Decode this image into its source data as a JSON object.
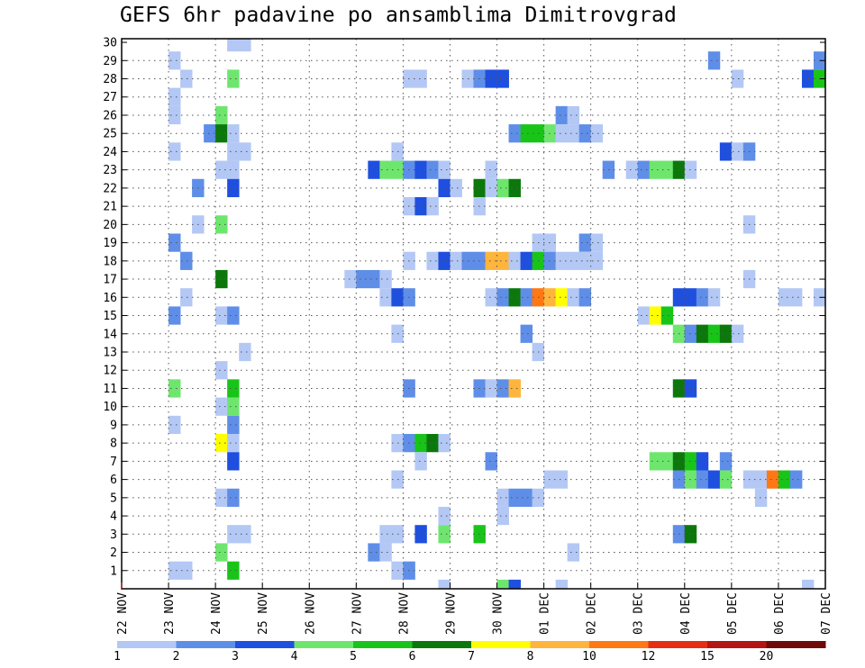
{
  "title": "GEFS 6hr padavine po ansamblima Dimitrovgrad",
  "chart_data": {
    "type": "heatmap",
    "title": "GEFS 6hr padavine po ansamblima Dimitrovgrad",
    "x_tick_labels": [
      "22 NOV",
      "23 NOV",
      "24 NOV",
      "25 NOV",
      "26 NOV",
      "27 NOV",
      "28 NOV",
      "29 NOV",
      "30 NOV",
      "01 DEC",
      "02 DEC",
      "03 DEC",
      "04 DEC",
      "05 DEC",
      "06 DEC",
      "07 DEC"
    ],
    "y_tick_labels": [
      "1",
      "2",
      "3",
      "4",
      "5",
      "6",
      "7",
      "8",
      "9",
      "10",
      "11",
      "12",
      "13",
      "14",
      "15",
      "16",
      "17",
      "18",
      "19",
      "20",
      "21",
      "22",
      "23",
      "24",
      "25",
      "26",
      "27",
      "28",
      "29",
      "30"
    ],
    "x_step_hours": 6,
    "ylim": [
      0,
      30
    ],
    "grid": true,
    "colorbar": {
      "labels": [
        "1",
        "2",
        "3",
        "4",
        "5",
        "6",
        "7",
        "8",
        "10",
        "12",
        "15",
        "20"
      ],
      "colors": [
        "#b4c8f5",
        "#5f8ee8",
        "#1f4fdf",
        "#6ee66e",
        "#19c419",
        "#0c780c",
        "#ffff00",
        "#ffb43c",
        "#ff7814",
        "#e62d14",
        "#b41414",
        "#6e0a0a"
      ]
    },
    "cell_colors": {
      "vlight": "#b4c8f5",
      "light": "#5f8ee8",
      "blue": "#1f4fdf",
      "lgreen": "#6ee66e",
      "green": "#19c419",
      "dgreen": "#0c780c",
      "yellow": "#ffff00",
      "orange": "#ffb43c",
      "dorange": "#ff7814"
    },
    "cells": [
      [
        "vlight",
        9,
        30
      ],
      [
        "vlight",
        10,
        30
      ],
      [
        "vlight",
        4,
        29
      ],
      [
        "light",
        50,
        29
      ],
      [
        "light",
        59,
        29
      ],
      [
        "vlight",
        5,
        28
      ],
      [
        "lgreen",
        9,
        28
      ],
      [
        "vlight",
        24,
        28
      ],
      [
        "vlight",
        25,
        28
      ],
      [
        "vlight",
        29,
        28
      ],
      [
        "light",
        30,
        28
      ],
      [
        "blue",
        31,
        28
      ],
      [
        "blue",
        32,
        28
      ],
      [
        "vlight",
        52,
        28
      ],
      [
        "blue",
        58,
        28
      ],
      [
        "green",
        59,
        28
      ],
      [
        "vlight",
        4,
        27
      ],
      [
        "vlight",
        4,
        26
      ],
      [
        "lgreen",
        8,
        26
      ],
      [
        "light",
        37,
        26
      ],
      [
        "vlight",
        38,
        26
      ],
      [
        "light",
        7,
        25
      ],
      [
        "dgreen",
        8,
        25
      ],
      [
        "vlight",
        9,
        25
      ],
      [
        "light",
        33,
        25
      ],
      [
        "green",
        34,
        25
      ],
      [
        "green",
        35,
        25
      ],
      [
        "lgreen",
        36,
        25
      ],
      [
        "vlight",
        37,
        25
      ],
      [
        "vlight",
        38,
        25
      ],
      [
        "light",
        39,
        25
      ],
      [
        "vlight",
        40,
        25
      ],
      [
        "vlight",
        4,
        24
      ],
      [
        "vlight",
        9,
        24
      ],
      [
        "vlight",
        10,
        24
      ],
      [
        "vlight",
        23,
        24
      ],
      [
        "blue",
        51,
        24
      ],
      [
        "vlight",
        52,
        24
      ],
      [
        "light",
        53,
        24
      ],
      [
        "vlight",
        8,
        23
      ],
      [
        "vlight",
        9,
        23
      ],
      [
        "blue",
        21,
        23
      ],
      [
        "lgreen",
        22,
        23
      ],
      [
        "lgreen",
        23,
        23
      ],
      [
        "light",
        24,
        23
      ],
      [
        "blue",
        25,
        23
      ],
      [
        "light",
        26,
        23
      ],
      [
        "vlight",
        27,
        23
      ],
      [
        "vlight",
        31,
        23
      ],
      [
        "light",
        41,
        23
      ],
      [
        "vlight",
        43,
        23
      ],
      [
        "light",
        44,
        23
      ],
      [
        "lgreen",
        45,
        23
      ],
      [
        "lgreen",
        46,
        23
      ],
      [
        "dgreen",
        47,
        23
      ],
      [
        "vlight",
        48,
        23
      ],
      [
        "light",
        6,
        22
      ],
      [
        "blue",
        9,
        22
      ],
      [
        "blue",
        27,
        22
      ],
      [
        "vlight",
        28,
        22
      ],
      [
        "dgreen",
        30,
        22
      ],
      [
        "vlight",
        31,
        22
      ],
      [
        "lgreen",
        32,
        22
      ],
      [
        "dgreen",
        33,
        22
      ],
      [
        "vlight",
        24,
        21
      ],
      [
        "blue",
        25,
        21
      ],
      [
        "vlight",
        26,
        21
      ],
      [
        "vlight",
        30,
        21
      ],
      [
        "vlight",
        6,
        20
      ],
      [
        "lgreen",
        8,
        20
      ],
      [
        "vlight",
        53,
        20
      ],
      [
        "light",
        4,
        19
      ],
      [
        "vlight",
        35,
        19
      ],
      [
        "vlight",
        36,
        19
      ],
      [
        "light",
        39,
        19
      ],
      [
        "vlight",
        40,
        19
      ],
      [
        "light",
        5,
        18
      ],
      [
        "vlight",
        24,
        18
      ],
      [
        "vlight",
        26,
        18
      ],
      [
        "blue",
        27,
        18
      ],
      [
        "vlight",
        28,
        18
      ],
      [
        "light",
        29,
        18
      ],
      [
        "light",
        30,
        18
      ],
      [
        "orange",
        31,
        18
      ],
      [
        "orange",
        32,
        18
      ],
      [
        "vlight",
        33,
        18
      ],
      [
        "blue",
        34,
        18
      ],
      [
        "green",
        35,
        18
      ],
      [
        "light",
        36,
        18
      ],
      [
        "vlight",
        37,
        18
      ],
      [
        "vlight",
        38,
        18
      ],
      [
        "vlight",
        39,
        18
      ],
      [
        "vlight",
        40,
        18
      ],
      [
        "dgreen",
        8,
        17
      ],
      [
        "vlight",
        19,
        17
      ],
      [
        "light",
        20,
        17
      ],
      [
        "light",
        21,
        17
      ],
      [
        "vlight",
        22,
        17
      ],
      [
        "vlight",
        53,
        17
      ],
      [
        "vlight",
        5,
        16
      ],
      [
        "vlight",
        22,
        16
      ],
      [
        "blue",
        23,
        16
      ],
      [
        "light",
        24,
        16
      ],
      [
        "vlight",
        31,
        16
      ],
      [
        "light",
        32,
        16
      ],
      [
        "dgreen",
        33,
        16
      ],
      [
        "light",
        34,
        16
      ],
      [
        "dorange",
        35,
        16
      ],
      [
        "orange",
        36,
        16
      ],
      [
        "yellow",
        37,
        16
      ],
      [
        "vlight",
        38,
        16
      ],
      [
        "light",
        39,
        16
      ],
      [
        "blue",
        47,
        16
      ],
      [
        "blue",
        48,
        16
      ],
      [
        "light",
        49,
        16
      ],
      [
        "vlight",
        50,
        16
      ],
      [
        "vlight",
        56,
        16
      ],
      [
        "vlight",
        57,
        16
      ],
      [
        "vlight",
        59,
        16
      ],
      [
        "light",
        4,
        15
      ],
      [
        "vlight",
        8,
        15
      ],
      [
        "light",
        9,
        15
      ],
      [
        "vlight",
        44,
        15
      ],
      [
        "yellow",
        45,
        15
      ],
      [
        "green",
        46,
        15
      ],
      [
        "vlight",
        23,
        14
      ],
      [
        "light",
        34,
        14
      ],
      [
        "lgreen",
        47,
        14
      ],
      [
        "light",
        48,
        14
      ],
      [
        "dgreen",
        49,
        14
      ],
      [
        "green",
        50,
        14
      ],
      [
        "dgreen",
        51,
        14
      ],
      [
        "vlight",
        52,
        14
      ],
      [
        "vlight",
        10,
        13
      ],
      [
        "vlight",
        35,
        13
      ],
      [
        "vlight",
        8,
        12
      ],
      [
        "lgreen",
        4,
        11
      ],
      [
        "green",
        9,
        11
      ],
      [
        "light",
        24,
        11
      ],
      [
        "light",
        30,
        11
      ],
      [
        "vlight",
        31,
        11
      ],
      [
        "light",
        32,
        11
      ],
      [
        "orange",
        33,
        11
      ],
      [
        "dgreen",
        47,
        11
      ],
      [
        "blue",
        48,
        11
      ],
      [
        "vlight",
        8,
        10
      ],
      [
        "lgreen",
        9,
        10
      ],
      [
        "vlight",
        4,
        9
      ],
      [
        "light",
        9,
        9
      ],
      [
        "yellow",
        8,
        8
      ],
      [
        "vlight",
        9,
        8
      ],
      [
        "vlight",
        23,
        8
      ],
      [
        "light",
        24,
        8
      ],
      [
        "green",
        25,
        8
      ],
      [
        "dgreen",
        26,
        8
      ],
      [
        "vlight",
        27,
        8
      ],
      [
        "blue",
        9,
        7
      ],
      [
        "vlight",
        25,
        7
      ],
      [
        "light",
        31,
        7
      ],
      [
        "lgreen",
        45,
        7
      ],
      [
        "lgreen",
        46,
        7
      ],
      [
        "dgreen",
        47,
        7
      ],
      [
        "green",
        48,
        7
      ],
      [
        "blue",
        49,
        7
      ],
      [
        "light",
        51,
        7
      ],
      [
        "vlight",
        23,
        6
      ],
      [
        "vlight",
        36,
        6
      ],
      [
        "vlight",
        37,
        6
      ],
      [
        "light",
        47,
        6
      ],
      [
        "lgreen",
        48,
        6
      ],
      [
        "light",
        49,
        6
      ],
      [
        "blue",
        50,
        6
      ],
      [
        "lgreen",
        51,
        6
      ],
      [
        "vlight",
        53,
        6
      ],
      [
        "vlight",
        54,
        6
      ],
      [
        "dorange",
        55,
        6
      ],
      [
        "green",
        56,
        6
      ],
      [
        "light",
        57,
        6
      ],
      [
        "vlight",
        8,
        5
      ],
      [
        "light",
        9,
        5
      ],
      [
        "vlight",
        32,
        5
      ],
      [
        "light",
        33,
        5
      ],
      [
        "light",
        34,
        5
      ],
      [
        "vlight",
        35,
        5
      ],
      [
        "vlight",
        54,
        5
      ],
      [
        "vlight",
        27,
        4
      ],
      [
        "vlight",
        32,
        4
      ],
      [
        "vlight",
        9,
        3
      ],
      [
        "vlight",
        10,
        3
      ],
      [
        "vlight",
        22,
        3
      ],
      [
        "vlight",
        23,
        3
      ],
      [
        "blue",
        25,
        3
      ],
      [
        "lgreen",
        27,
        3
      ],
      [
        "green",
        30,
        3
      ],
      [
        "light",
        47,
        3
      ],
      [
        "dgreen",
        48,
        3
      ],
      [
        "lgreen",
        8,
        2
      ],
      [
        "light",
        21,
        2
      ],
      [
        "vlight",
        22,
        2
      ],
      [
        "vlight",
        38,
        2
      ],
      [
        "vlight",
        4,
        1
      ],
      [
        "vlight",
        5,
        1
      ],
      [
        "green",
        9,
        1
      ],
      [
        "vlight",
        23,
        1
      ],
      [
        "light",
        24,
        1
      ],
      [
        "vlight",
        27,
        0
      ],
      [
        "lgreen",
        32,
        0
      ],
      [
        "blue",
        33,
        0
      ],
      [
        "vlight",
        37,
        0
      ],
      [
        "vlight",
        58,
        0
      ]
    ]
  }
}
